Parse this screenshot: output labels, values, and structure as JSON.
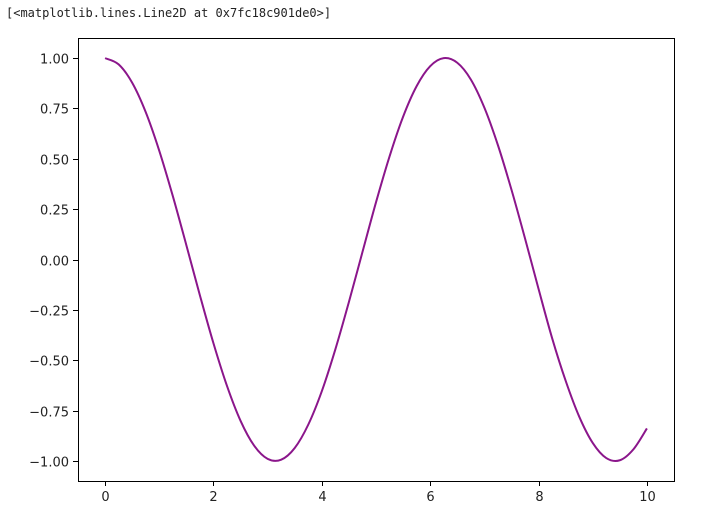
{
  "output_text": "[<matplotlib.lines.Line2D at 0x7fc18c901de0>]",
  "chart_data": {
    "type": "line",
    "title": "",
    "xlabel": "",
    "ylabel": "",
    "xlim": [
      -0.5,
      10.5
    ],
    "ylim": [
      -1.1,
      1.1
    ],
    "grid": false,
    "xticks": [
      0,
      2,
      4,
      6,
      8,
      10
    ],
    "xtick_labels": [
      "0",
      "2",
      "4",
      "6",
      "8",
      "10"
    ],
    "yticks": [
      1,
      0.75,
      0.5,
      0.25,
      0,
      -0.25,
      -0.5,
      -0.75,
      -1
    ],
    "ytick_labels": [
      "1.00",
      "0.75",
      "0.50",
      "0.25",
      "0.00",
      "−0.25",
      "−0.50",
      "−0.75",
      "−1.00"
    ],
    "series": [
      {
        "color": "#8b168b",
        "x": [
          0,
          0.25,
          0.5,
          0.75,
          1,
          1.25,
          1.5,
          1.75,
          2,
          2.25,
          2.5,
          2.75,
          3,
          3.25,
          3.5,
          3.75,
          4,
          4.25,
          4.5,
          4.75,
          5,
          5.25,
          5.5,
          5.75,
          6,
          6.25,
          6.5,
          6.75,
          7,
          7.25,
          7.5,
          7.75,
          8,
          8.25,
          8.5,
          8.75,
          9,
          9.25,
          9.5,
          9.75,
          10
        ],
        "y": [
          1,
          0.969,
          0.878,
          0.732,
          0.54,
          0.315,
          0.071,
          -0.178,
          -0.416,
          -0.628,
          -0.801,
          -0.924,
          -0.99,
          -0.994,
          -0.936,
          -0.82,
          -0.654,
          -0.446,
          -0.211,
          0.037,
          0.284,
          0.512,
          0.709,
          0.861,
          0.96,
          1.0,
          0.977,
          0.894,
          0.754,
          0.568,
          0.347,
          0.105,
          -0.146,
          -0.39,
          -0.602,
          -0.78,
          -0.911,
          -0.986,
          -0.997,
          -0.943,
          -0.839
        ]
      }
    ]
  }
}
